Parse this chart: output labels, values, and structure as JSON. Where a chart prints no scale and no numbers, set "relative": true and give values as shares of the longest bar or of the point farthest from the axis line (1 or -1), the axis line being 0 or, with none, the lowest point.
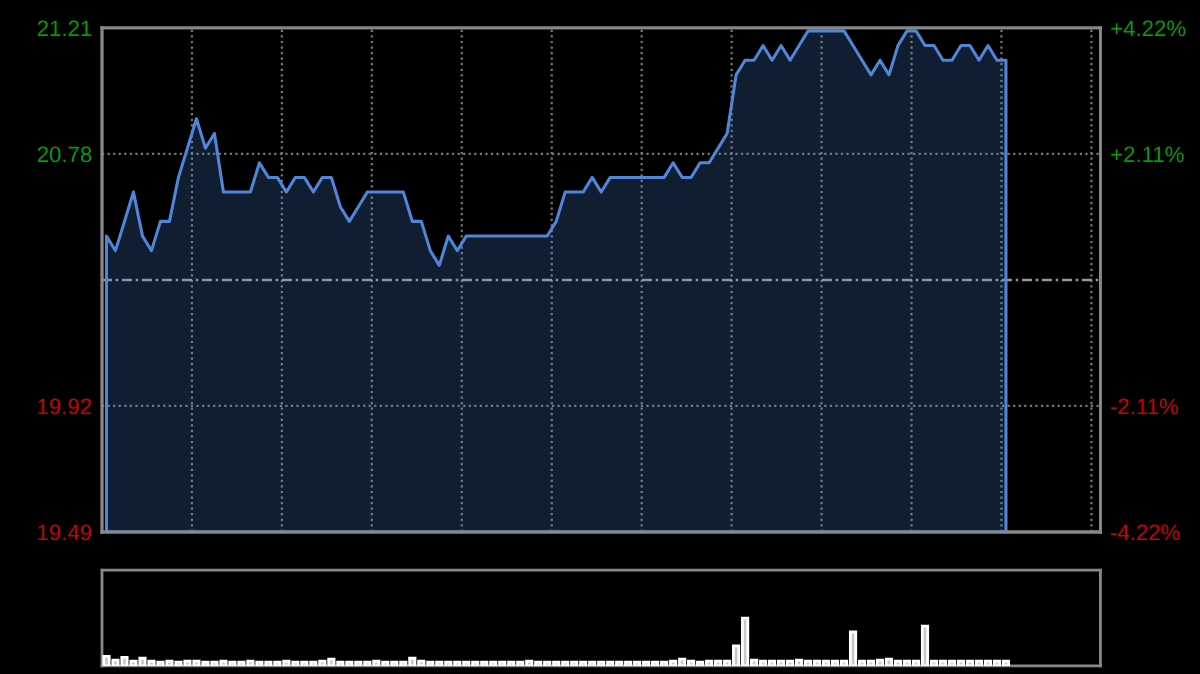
{
  "chart_data": [
    {
      "type": "area",
      "categories": [
        null,
        null,
        null,
        null,
        null,
        null,
        null,
        null,
        null,
        null,
        null,
        null,
        null,
        null,
        null,
        null,
        null,
        null,
        null,
        null,
        null,
        null,
        null,
        null,
        null,
        null,
        null,
        null,
        null,
        null,
        null,
        null,
        null,
        null,
        null,
        null,
        null,
        null,
        null,
        null,
        null,
        null,
        null,
        null,
        null,
        null,
        null,
        null,
        null,
        null,
        null,
        null,
        null,
        null,
        null,
        null,
        null,
        null,
        null,
        null,
        null,
        null,
        null,
        null,
        null,
        null,
        null,
        null,
        null,
        null,
        null,
        null,
        null,
        null,
        null,
        null,
        null,
        null,
        null,
        null,
        null,
        null,
        null,
        null,
        null,
        null,
        null,
        null,
        null,
        null,
        null,
        null,
        null,
        null,
        null,
        null,
        null,
        null,
        null,
        null,
        null
      ],
      "values": [
        20.5,
        20.45,
        20.55,
        20.65,
        20.5,
        20.45,
        20.55,
        20.55,
        20.7,
        20.8,
        20.9,
        20.8,
        20.85,
        20.65,
        20.65,
        20.65,
        20.65,
        20.75,
        20.7,
        20.7,
        20.65,
        20.7,
        20.7,
        20.65,
        20.7,
        20.7,
        20.6,
        20.55,
        20.6,
        20.65,
        20.65,
        20.65,
        20.65,
        20.65,
        20.55,
        20.55,
        20.45,
        20.4,
        20.5,
        20.45,
        20.5,
        20.5,
        20.5,
        20.5,
        20.5,
        20.5,
        20.5,
        20.5,
        20.5,
        20.5,
        20.55,
        20.65,
        20.65,
        20.65,
        20.7,
        20.65,
        20.7,
        20.7,
        20.7,
        20.7,
        20.7,
        20.7,
        20.7,
        20.75,
        20.7,
        20.7,
        20.75,
        20.75,
        20.8,
        20.85,
        21.05,
        21.1,
        21.1,
        21.15,
        21.1,
        21.15,
        21.1,
        21.15,
        21.2,
        21.2,
        21.2,
        21.2,
        21.2,
        21.15,
        21.1,
        21.05,
        21.1,
        21.05,
        21.15,
        21.2,
        21.2,
        21.15,
        21.15,
        21.1,
        21.1,
        21.15,
        21.15,
        21.1,
        21.15,
        21.1,
        21.1
      ],
      "color": "#4f86d9",
      "ylim": [
        19.49,
        21.21
      ],
      "yticks": [
        19.49,
        19.92,
        20.78,
        21.21
      ],
      "y2lim": [
        -4.22,
        4.22
      ],
      "y2ticks": [
        {
          "value": -4.22,
          "label": "-4.22%"
        },
        {
          "value": -2.11,
          "label": "-2.11%"
        },
        {
          "value": 2.11,
          "label": "+2.11%"
        },
        {
          "value": 4.22,
          "label": "+4.22%"
        }
      ],
      "ref_lines": [
        {
          "axis": "y",
          "value": 20.35
        }
      ],
      "grid": true,
      "tick_labels": "y"
    },
    {
      "type": "bar",
      "relative": true,
      "categories": [
        null,
        null,
        null,
        null,
        null,
        null,
        null,
        null,
        null,
        null,
        null,
        null,
        null,
        null,
        null,
        null,
        null,
        null,
        null,
        null,
        null,
        null,
        null,
        null,
        null,
        null,
        null,
        null,
        null,
        null,
        null,
        null,
        null,
        null,
        null,
        null,
        null,
        null,
        null,
        null,
        null,
        null,
        null,
        null,
        null,
        null,
        null,
        null,
        null,
        null,
        null,
        null,
        null,
        null,
        null,
        null,
        null,
        null,
        null,
        null,
        null,
        null,
        null,
        null,
        null,
        null,
        null,
        null,
        null,
        null,
        null,
        null,
        null,
        null,
        null,
        null,
        null,
        null,
        null,
        null,
        null,
        null,
        null,
        null,
        null,
        null,
        null,
        null,
        null,
        null,
        null,
        null,
        null,
        null,
        null,
        null,
        null,
        null,
        null,
        null,
        null
      ],
      "values": [
        0.2,
        0.12,
        0.18,
        0.1,
        0.16,
        0.1,
        0.08,
        0.1,
        0.08,
        0.1,
        0.1,
        0.08,
        0.08,
        0.1,
        0.08,
        0.08,
        0.1,
        0.08,
        0.08,
        0.08,
        0.1,
        0.08,
        0.08,
        0.08,
        0.1,
        0.14,
        0.08,
        0.08,
        0.08,
        0.08,
        0.1,
        0.08,
        0.08,
        0.08,
        0.16,
        0.1,
        0.08,
        0.08,
        0.08,
        0.08,
        0.08,
        0.08,
        0.08,
        0.08,
        0.08,
        0.08,
        0.08,
        0.1,
        0.08,
        0.08,
        0.08,
        0.08,
        0.08,
        0.08,
        0.08,
        0.08,
        0.08,
        0.08,
        0.08,
        0.08,
        0.08,
        0.08,
        0.08,
        0.1,
        0.14,
        0.1,
        0.08,
        0.1,
        0.1,
        0.1,
        0.42,
        1,
        0.12,
        0.1,
        0.1,
        0.1,
        0.1,
        0.12,
        0.1,
        0.1,
        0.1,
        0.1,
        0.1,
        0.71,
        0.1,
        0.1,
        0.12,
        0.14,
        0.1,
        0.1,
        0.1,
        0.83,
        0.1,
        0.1,
        0.1,
        0.1,
        0.1,
        0.1,
        0.1,
        0.1,
        0.1
      ],
      "color": "#c8c8c8",
      "tick_labels": false
    }
  ]
}
